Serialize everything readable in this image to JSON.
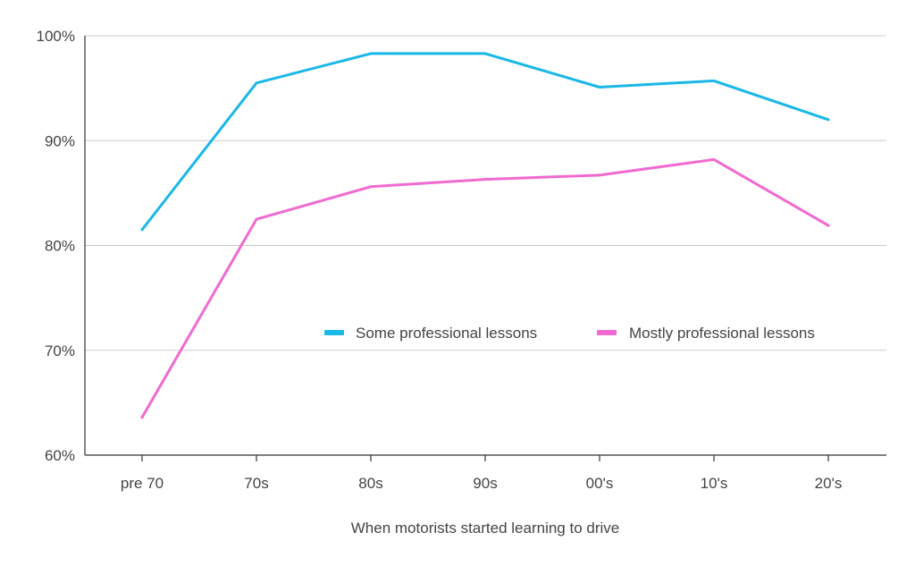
{
  "chart_data": {
    "type": "line",
    "title": "",
    "xlabel": "When motorists started learning to drive",
    "ylabel": "",
    "categories": [
      "pre 70",
      "70s",
      "80s",
      "90s",
      "00's",
      "10's",
      "20's"
    ],
    "ylim": [
      60,
      100
    ],
    "yticks": [
      60,
      70,
      80,
      90,
      100
    ],
    "ytick_labels": [
      "60%",
      "70%",
      "80%",
      "90%",
      "100%"
    ],
    "grid": true,
    "legend_position": "inside-right",
    "series": [
      {
        "name": "Some professional lessons",
        "color": "#1ab8e8",
        "values": [
          81.5,
          95.5,
          98.3,
          98.3,
          95.1,
          95.7,
          92.0
        ]
      },
      {
        "name": "Mostly professional lessons",
        "color": "#f06ad0",
        "values": [
          63.6,
          82.5,
          85.6,
          86.3,
          86.7,
          88.2,
          81.9
        ]
      }
    ]
  }
}
